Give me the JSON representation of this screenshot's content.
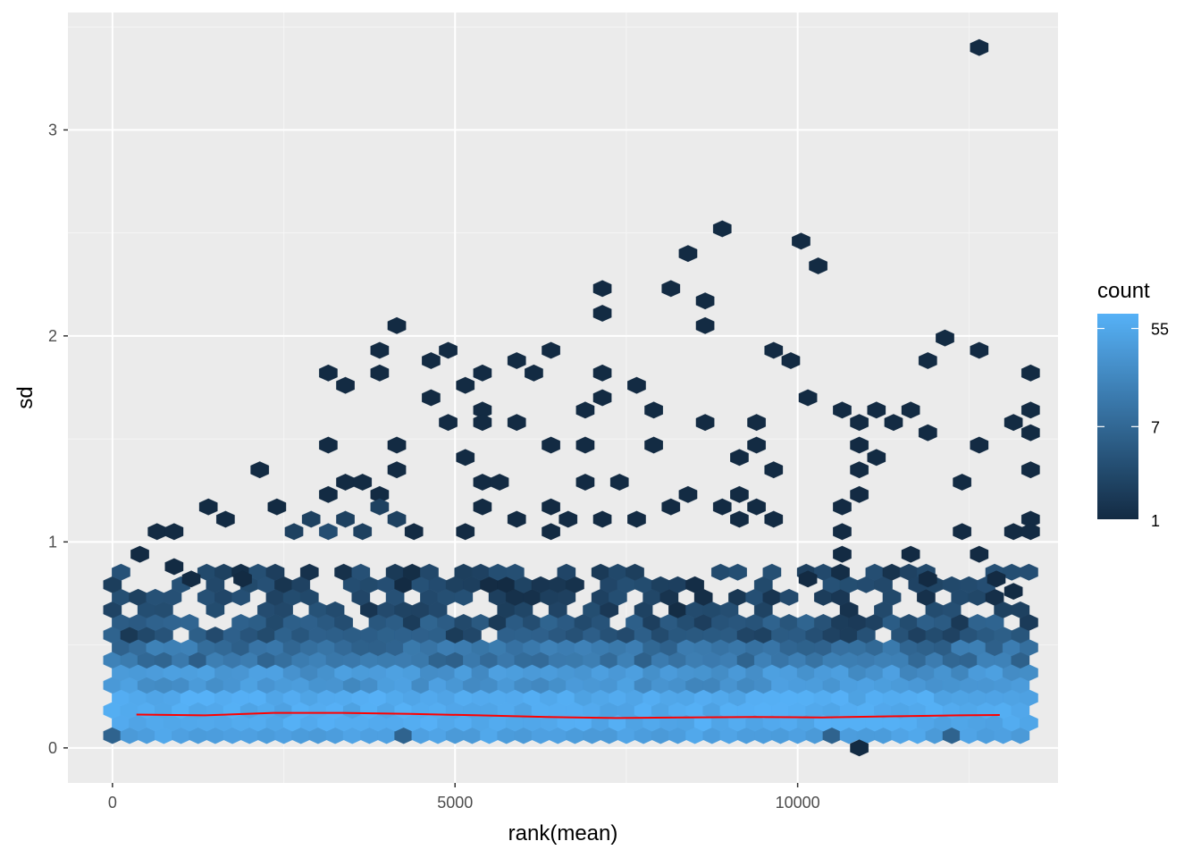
{
  "chart_data": {
    "type": "hexbin",
    "xlabel": "rank(mean)",
    "ylabel": "sd",
    "xlim": [
      -650,
      13800
    ],
    "ylim": [
      -0.17,
      3.57
    ],
    "x_ticks": [
      0,
      5000,
      10000
    ],
    "x_tick_labels": [
      "0",
      "5000",
      "10000"
    ],
    "y_ticks": [
      0,
      1,
      2,
      3
    ],
    "y_tick_labels": [
      "0",
      "1",
      "2",
      "3"
    ],
    "grid": true,
    "legend": {
      "title": "count",
      "position": "right",
      "scale": "log",
      "breaks": [
        1,
        7,
        55
      ],
      "labels": [
        "1",
        "7",
        "55"
      ],
      "color_low": "#132B43",
      "color_high": "#56B1F7"
    },
    "hexbin": {
      "x_step": 250,
      "y_step": 0.061,
      "low_row": [
        6,
        56,
        40,
        50,
        38,
        44,
        36,
        40
      ],
      "sparse_cells": [
        [
          12650,
          3.4,
          1
        ],
        [
          8900,
          2.52,
          1
        ],
        [
          10050,
          2.46,
          1
        ],
        [
          8400,
          2.4,
          1
        ],
        [
          10300,
          2.34,
          1
        ],
        [
          7150,
          2.23,
          1
        ],
        [
          8150,
          2.23,
          1
        ],
        [
          8650,
          2.17,
          1
        ],
        [
          7150,
          2.11,
          1
        ],
        [
          4150,
          2.05,
          1
        ],
        [
          8650,
          2.05,
          1
        ],
        [
          12150,
          1.99,
          1
        ],
        [
          3900,
          1.93,
          1
        ],
        [
          4900,
          1.93,
          1
        ],
        [
          6400,
          1.93,
          1
        ],
        [
          9650,
          1.93,
          1
        ],
        [
          12650,
          1.93,
          1
        ],
        [
          4650,
          1.88,
          1
        ],
        [
          5900,
          1.88,
          1
        ],
        [
          9900,
          1.88,
          1
        ],
        [
          11900,
          1.88,
          1
        ],
        [
          3150,
          1.82,
          1
        ],
        [
          3900,
          1.82,
          1
        ],
        [
          5400,
          1.82,
          1
        ],
        [
          6150,
          1.82,
          1
        ],
        [
          7150,
          1.82,
          1
        ],
        [
          13400,
          1.82,
          1
        ],
        [
          3400,
          1.76,
          1
        ],
        [
          5150,
          1.76,
          1
        ],
        [
          7650,
          1.76,
          1
        ],
        [
          4650,
          1.7,
          1
        ],
        [
          7150,
          1.7,
          1
        ],
        [
          10150,
          1.7,
          1
        ],
        [
          5400,
          1.64,
          1
        ],
        [
          6900,
          1.64,
          1
        ],
        [
          7900,
          1.64,
          1
        ],
        [
          10650,
          1.64,
          1
        ],
        [
          11150,
          1.64,
          1
        ],
        [
          11650,
          1.64,
          1
        ],
        [
          13400,
          1.64,
          1
        ],
        [
          4900,
          1.58,
          1
        ],
        [
          5400,
          1.58,
          1
        ],
        [
          5900,
          1.58,
          1
        ],
        [
          8650,
          1.58,
          1
        ],
        [
          9400,
          1.58,
          1
        ],
        [
          10900,
          1.58,
          1
        ],
        [
          11400,
          1.58,
          1
        ],
        [
          13150,
          1.58,
          1
        ],
        [
          3150,
          1.47,
          1
        ],
        [
          4150,
          1.47,
          1
        ],
        [
          6400,
          1.47,
          1
        ],
        [
          6900,
          1.47,
          1
        ],
        [
          7900,
          1.47,
          1
        ],
        [
          9400,
          1.47,
          1
        ],
        [
          10900,
          1.47,
          1
        ],
        [
          12650,
          1.47,
          1
        ],
        [
          13400,
          1.53,
          1
        ],
        [
          11900,
          1.53,
          1
        ],
        [
          5150,
          1.41,
          1
        ],
        [
          9150,
          1.41,
          1
        ],
        [
          11150,
          1.41,
          1
        ],
        [
          4150,
          1.35,
          1
        ],
        [
          2150,
          1.35,
          1
        ],
        [
          9650,
          1.35,
          1
        ],
        [
          10900,
          1.35,
          1
        ],
        [
          13400,
          1.35,
          1
        ],
        [
          3400,
          1.29,
          1
        ],
        [
          3650,
          1.29,
          1
        ],
        [
          5400,
          1.29,
          1
        ],
        [
          5650,
          1.29,
          1
        ],
        [
          6900,
          1.29,
          1
        ],
        [
          7400,
          1.29,
          1
        ],
        [
          12400,
          1.29,
          1
        ],
        [
          3150,
          1.23,
          1
        ],
        [
          3900,
          1.23,
          1
        ],
        [
          8400,
          1.23,
          1
        ],
        [
          9150,
          1.23,
          1
        ],
        [
          10900,
          1.23,
          1
        ],
        [
          1400,
          1.17,
          1
        ],
        [
          2400,
          1.17,
          1
        ],
        [
          5400,
          1.17,
          1
        ],
        [
          6400,
          1.17,
          1
        ],
        [
          8150,
          1.17,
          1
        ],
        [
          8900,
          1.17,
          1
        ],
        [
          9400,
          1.17,
          1
        ],
        [
          10650,
          1.17,
          1
        ],
        [
          3900,
          1.17,
          2
        ],
        [
          4150,
          1.11,
          2
        ],
        [
          5900,
          1.11,
          1
        ],
        [
          6650,
          1.11,
          1
        ],
        [
          7150,
          1.11,
          1
        ],
        [
          7650,
          1.11,
          1
        ],
        [
          9150,
          1.11,
          1
        ],
        [
          9650,
          1.11,
          1
        ],
        [
          13400,
          1.11,
          1
        ],
        [
          1650,
          1.11,
          1
        ],
        [
          2900,
          1.11,
          2
        ],
        [
          3400,
          1.11,
          2
        ],
        [
          650,
          1.05,
          1
        ],
        [
          900,
          1.05,
          1
        ],
        [
          2650,
          1.05,
          2
        ],
        [
          3150,
          1.05,
          3
        ],
        [
          3650,
          1.05,
          2
        ],
        [
          4400,
          1.05,
          1
        ],
        [
          5150,
          1.05,
          1
        ],
        [
          6400,
          1.05,
          1
        ],
        [
          10650,
          1.05,
          1
        ],
        [
          12400,
          1.05,
          1
        ],
        [
          13150,
          1.05,
          1
        ],
        [
          400,
          0.94,
          1
        ],
        [
          900,
          0.88,
          1
        ],
        [
          1150,
          0.82,
          1
        ],
        [
          1900,
          0.82,
          1
        ],
        [
          11900,
          0.82,
          1
        ],
        [
          10150,
          0.82,
          1
        ],
        [
          10650,
          0.94,
          1
        ],
        [
          11650,
          0.94,
          1
        ],
        [
          12650,
          0.94,
          1
        ],
        [
          13400,
          1.05,
          1
        ],
        [
          12900,
          0.82,
          1
        ],
        [
          13150,
          0.76,
          1
        ],
        [
          10900,
          0.0,
          1
        ]
      ]
    },
    "smooth_line": {
      "color": "#FF0000",
      "x": [
        350,
        1350,
        2350,
        3350,
        4350,
        5350,
        6350,
        7350,
        8350,
        9350,
        10350,
        11350,
        12350,
        12950
      ],
      "y": [
        0.162,
        0.158,
        0.17,
        0.17,
        0.165,
        0.158,
        0.15,
        0.145,
        0.148,
        0.15,
        0.148,
        0.153,
        0.158,
        0.16
      ]
    }
  }
}
